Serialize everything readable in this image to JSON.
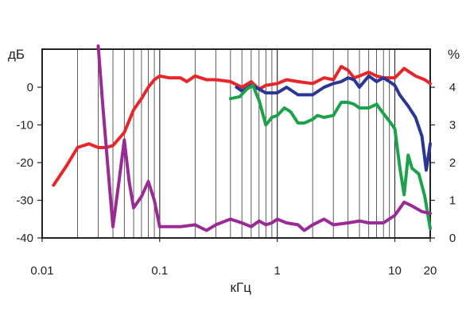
{
  "chart_data": {
    "type": "line",
    "title": "",
    "xlabel": "кГц",
    "ylabel_left": "дБ",
    "ylabel_right": "%",
    "x_scale": "log",
    "xlim": [
      0.01,
      20
    ],
    "ylim_left": [
      -40,
      5
    ],
    "ylim_right": [
      0,
      5
    ],
    "grid": "vertical",
    "x_ticks": [
      {
        "value": 0.01,
        "label": "0.01"
      },
      {
        "value": 0.1,
        "label": "0.1"
      },
      {
        "value": 1,
        "label": "1"
      },
      {
        "value": 10,
        "label": "10"
      },
      {
        "value": 20,
        "label": "20"
      }
    ],
    "y_ticks_left": [
      {
        "value": 0,
        "label": "0"
      },
      {
        "value": -10,
        "label": "-10"
      },
      {
        "value": -20,
        "label": "-20"
      },
      {
        "value": -30,
        "label": "-30"
      },
      {
        "value": -40,
        "label": "-40"
      }
    ],
    "y_ticks_right": [
      {
        "value": 4,
        "label": "4"
      },
      {
        "value": 3,
        "label": "3"
      },
      {
        "value": 2,
        "label": "2"
      },
      {
        "value": 1,
        "label": "1"
      },
      {
        "value": 0,
        "label": "0"
      }
    ],
    "series": [
      {
        "color": "#e8262a",
        "axis": "left",
        "points": [
          [
            0.0125,
            -26
          ],
          [
            0.016,
            -21
          ],
          [
            0.02,
            -16
          ],
          [
            0.025,
            -15
          ],
          [
            0.03,
            -16
          ],
          [
            0.035,
            -16
          ],
          [
            0.04,
            -15.5
          ],
          [
            0.05,
            -12
          ],
          [
            0.06,
            -6
          ],
          [
            0.07,
            -3
          ],
          [
            0.08,
            0
          ],
          [
            0.09,
            2
          ],
          [
            0.1,
            3
          ],
          [
            0.12,
            2.5
          ],
          [
            0.15,
            2.5
          ],
          [
            0.17,
            1.5
          ],
          [
            0.2,
            3
          ],
          [
            0.25,
            2
          ],
          [
            0.3,
            2
          ],
          [
            0.4,
            1.5
          ],
          [
            0.5,
            0
          ],
          [
            0.6,
            1.5
          ],
          [
            0.7,
            -0.5
          ],
          [
            0.8,
            0.5
          ],
          [
            1.0,
            1
          ],
          [
            1.2,
            2
          ],
          [
            1.5,
            1.5
          ],
          [
            2.0,
            1
          ],
          [
            2.5,
            2.5
          ],
          [
            3.0,
            2
          ],
          [
            3.5,
            5.5
          ],
          [
            4.0,
            4.5
          ],
          [
            4.5,
            2.5
          ],
          [
            5.0,
            3
          ],
          [
            6.0,
            4
          ],
          [
            7.0,
            3
          ],
          [
            8.0,
            2.5
          ],
          [
            10.0,
            2.5
          ],
          [
            12.0,
            5
          ],
          [
            15.0,
            3
          ],
          [
            18.0,
            2
          ],
          [
            20.0,
            1
          ]
        ]
      },
      {
        "color": "#2b3594",
        "axis": "left",
        "points": [
          [
            0.45,
            0
          ],
          [
            0.5,
            -1
          ],
          [
            0.6,
            0.5
          ],
          [
            0.7,
            -0.5
          ],
          [
            0.8,
            -1.5
          ],
          [
            1.0,
            -1.5
          ],
          [
            1.2,
            0
          ],
          [
            1.5,
            -2
          ],
          [
            2.0,
            -2
          ],
          [
            2.5,
            0
          ],
          [
            3.0,
            1
          ],
          [
            3.5,
            1.5
          ],
          [
            4.0,
            2.5
          ],
          [
            4.5,
            2
          ],
          [
            5.0,
            0
          ],
          [
            6.0,
            3
          ],
          [
            7.0,
            1.5
          ],
          [
            8.0,
            2.5
          ],
          [
            9.0,
            1.5
          ],
          [
            10.0,
            0.5
          ],
          [
            11.0,
            -2
          ],
          [
            13.0,
            -5
          ],
          [
            15.0,
            -8
          ],
          [
            17.0,
            -13
          ],
          [
            18.5,
            -22
          ],
          [
            20.0,
            -15
          ]
        ]
      },
      {
        "color": "#1ba24a",
        "axis": "right",
        "points": [
          [
            0.4,
            3.7
          ],
          [
            0.48,
            3.75
          ],
          [
            0.55,
            3.95
          ],
          [
            0.62,
            4.05
          ],
          [
            0.7,
            3.65
          ],
          [
            0.8,
            3.0
          ],
          [
            0.9,
            3.2
          ],
          [
            1.0,
            3.25
          ],
          [
            1.15,
            3.45
          ],
          [
            1.3,
            3.35
          ],
          [
            1.5,
            3.05
          ],
          [
            1.7,
            3.05
          ],
          [
            2.0,
            3.15
          ],
          [
            2.2,
            3.25
          ],
          [
            2.5,
            3.2
          ],
          [
            3.0,
            3.25
          ],
          [
            3.5,
            3.6
          ],
          [
            4.0,
            3.6
          ],
          [
            4.5,
            3.55
          ],
          [
            5.0,
            3.45
          ],
          [
            6.0,
            3.45
          ],
          [
            7.0,
            3.55
          ],
          [
            8.0,
            3.3
          ],
          [
            9.0,
            3.1
          ],
          [
            10.0,
            2.9
          ],
          [
            11.0,
            1.9
          ],
          [
            12.0,
            1.15
          ],
          [
            13.0,
            2.2
          ],
          [
            14.0,
            1.85
          ],
          [
            16.0,
            1.7
          ],
          [
            18.0,
            1.1
          ],
          [
            20.0,
            0.25
          ]
        ]
      },
      {
        "color": "#9a2a96",
        "axis": "right",
        "points": [
          [
            0.03,
            5.2
          ],
          [
            0.033,
            3.4
          ],
          [
            0.036,
            2.0
          ],
          [
            0.04,
            0.3
          ],
          [
            0.045,
            1.5
          ],
          [
            0.05,
            2.6
          ],
          [
            0.055,
            1.5
          ],
          [
            0.06,
            0.8
          ],
          [
            0.07,
            1.1
          ],
          [
            0.08,
            1.5
          ],
          [
            0.09,
            1.0
          ],
          [
            0.1,
            0.3
          ],
          [
            0.15,
            0.3
          ],
          [
            0.2,
            0.35
          ],
          [
            0.25,
            0.2
          ],
          [
            0.3,
            0.35
          ],
          [
            0.4,
            0.5
          ],
          [
            0.5,
            0.4
          ],
          [
            0.6,
            0.3
          ],
          [
            0.7,
            0.45
          ],
          [
            0.8,
            0.35
          ],
          [
            0.9,
            0.4
          ],
          [
            1.0,
            0.5
          ],
          [
            1.2,
            0.4
          ],
          [
            1.5,
            0.35
          ],
          [
            1.7,
            0.2
          ],
          [
            2.0,
            0.35
          ],
          [
            2.5,
            0.5
          ],
          [
            3.0,
            0.35
          ],
          [
            4.0,
            0.4
          ],
          [
            5.0,
            0.45
          ],
          [
            6.0,
            0.4
          ],
          [
            8.0,
            0.4
          ],
          [
            10.0,
            0.6
          ],
          [
            12.0,
            0.95
          ],
          [
            14.0,
            0.85
          ],
          [
            17.0,
            0.7
          ],
          [
            20.0,
            0.65
          ]
        ]
      }
    ]
  }
}
